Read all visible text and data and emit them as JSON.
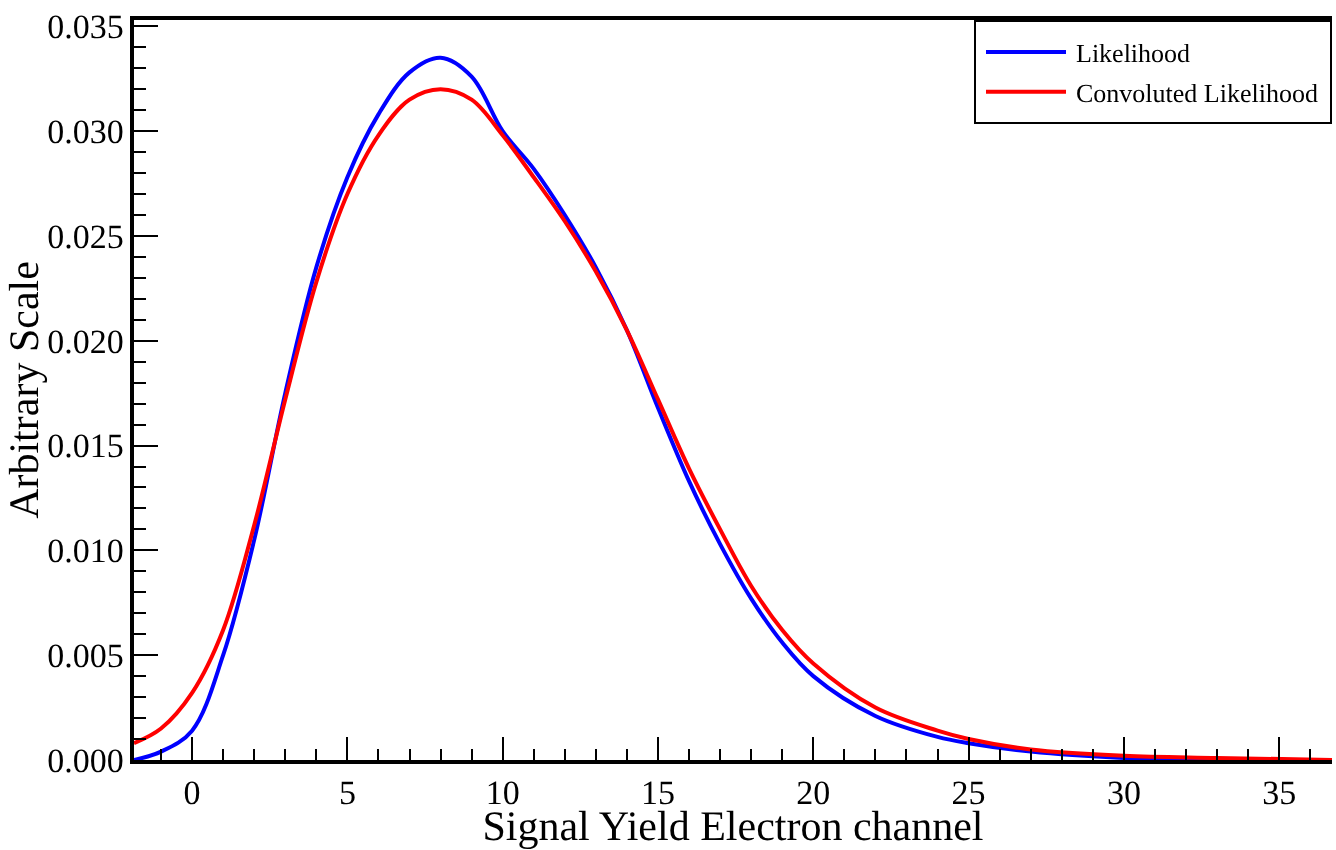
{
  "chart_data": {
    "type": "line",
    "xlabel": "Signal Yield Electron channel",
    "ylabel": "Arbitrary Scale",
    "x": [
      -1.87,
      -1,
      0,
      1,
      2,
      3,
      4,
      5,
      6,
      7,
      8,
      9,
      10,
      11,
      12,
      13,
      14,
      15,
      16,
      17,
      18,
      19,
      20,
      22,
      24,
      25,
      27,
      30,
      33,
      36.7
    ],
    "series": [
      {
        "name": "Likelihood",
        "color": "#0000ff",
        "values": [
          0.0,
          0.0004,
          0.0014,
          0.005,
          0.0105,
          0.0175,
          0.0235,
          0.0278,
          0.0308,
          0.0328,
          0.0335,
          0.0326,
          0.03,
          0.0282,
          0.026,
          0.0235,
          0.0205,
          0.0168,
          0.0133,
          0.0103,
          0.0077,
          0.0056,
          0.004,
          0.0021,
          0.0011,
          0.0008,
          0.0004,
          0.0001,
          0.0,
          0.0
        ]
      },
      {
        "name": "Convoluted Likelihood",
        "color": "#ff0000",
        "values": [
          0.0008,
          0.0015,
          0.0032,
          0.0062,
          0.0112,
          0.0172,
          0.0228,
          0.027,
          0.0298,
          0.0315,
          0.032,
          0.0315,
          0.0298,
          0.0278,
          0.0257,
          0.0233,
          0.0205,
          0.0172,
          0.0139,
          0.011,
          0.0083,
          0.0062,
          0.0046,
          0.0025,
          0.0014,
          0.001,
          0.0005,
          0.0002,
          0.0001,
          0.0
        ]
      }
    ],
    "xlim": [
      -1.87,
      36.7
    ],
    "xticks": [
      0,
      5,
      10,
      15,
      20,
      25,
      30,
      35
    ],
    "ylim": [
      0,
      0.0353
    ],
    "yticks": [
      {
        "value": 0,
        "label": "0.000"
      },
      {
        "value": 0.005,
        "label": "0.005"
      },
      {
        "value": 0.01,
        "label": "0.010"
      },
      {
        "value": 0.015,
        "label": "0.015"
      },
      {
        "value": 0.02,
        "label": "0.020"
      },
      {
        "value": 0.025,
        "label": "0.025"
      },
      {
        "value": 0.03,
        "label": "0.030"
      },
      {
        "value": 0.035,
        "label": "0.035"
      }
    ],
    "legend": "top right",
    "marker": "none",
    "line_style": "solid"
  }
}
